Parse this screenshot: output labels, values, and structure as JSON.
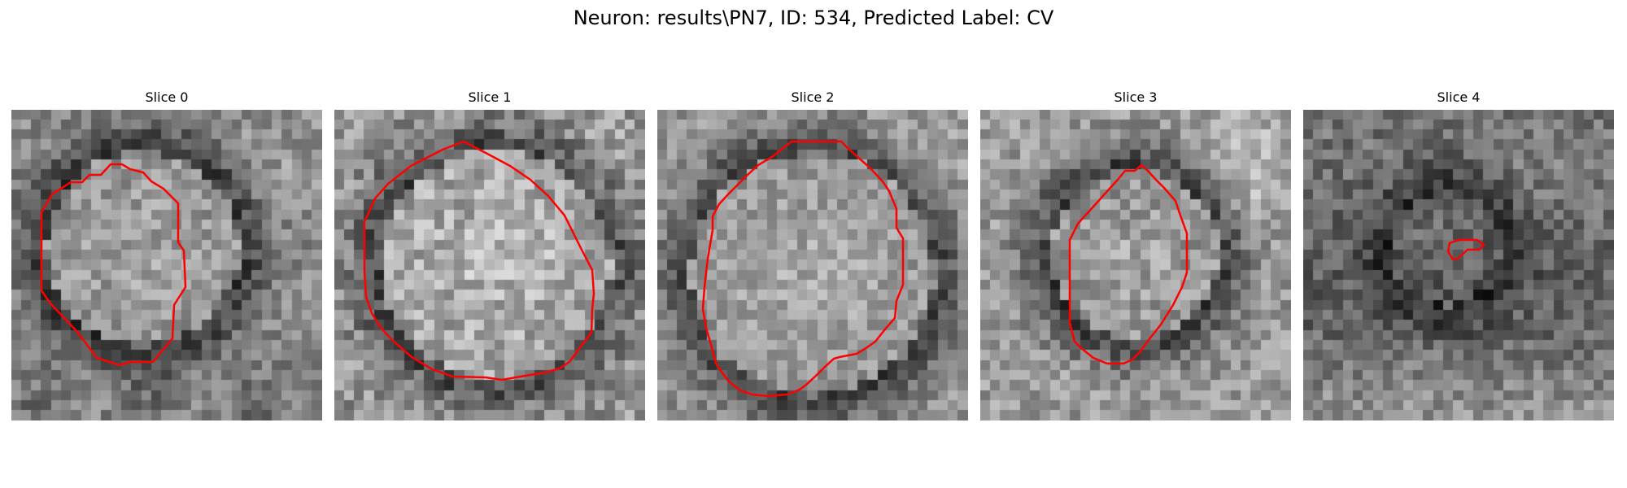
{
  "figure": {
    "title": "Neuron: results\\PN7, ID: 534, Predicted Label: CV",
    "contour_color": "#ff0000"
  },
  "slices": [
    {
      "title": "Slice 0"
    },
    {
      "title": "Slice 1"
    },
    {
      "title": "Slice 2"
    },
    {
      "title": "Slice 3"
    },
    {
      "title": "Slice 4"
    }
  ]
}
